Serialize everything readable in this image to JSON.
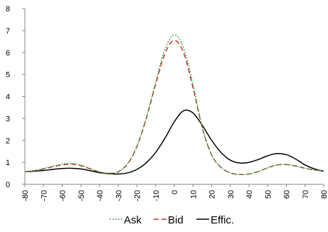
{
  "chart_data": {
    "type": "line",
    "title": "",
    "xlabel": "",
    "ylabel": "",
    "xlim": [
      -80,
      80
    ],
    "ylim": [
      0,
      8
    ],
    "x_ticks": [
      -80,
      -70,
      -60,
      -50,
      -40,
      -30,
      -20,
      -10,
      0,
      10,
      20,
      30,
      40,
      50,
      60,
      70,
      80
    ],
    "x_tick_labels": [
      "-80",
      "-70",
      "-60",
      "-50",
      "-40",
      "-30",
      "-20",
      "-10",
      "0",
      "10",
      "20",
      "30",
      "40",
      "50",
      "60",
      "70",
      "80"
    ],
    "y_ticks": [
      0,
      1,
      2,
      3,
      4,
      5,
      6,
      7,
      8
    ],
    "y_tick_labels": [
      "0",
      "1",
      "2",
      "3",
      "4",
      "5",
      "6",
      "7",
      "8"
    ],
    "grid": false,
    "legend_position": "bottom",
    "x": [
      -80,
      -75,
      -70,
      -65,
      -60,
      -55,
      -50,
      -45,
      -40,
      -35,
      -30,
      -25,
      -20,
      -15,
      -10,
      -5,
      0,
      5,
      10,
      15,
      20,
      25,
      30,
      35,
      40,
      45,
      50,
      55,
      60,
      65,
      70,
      75,
      80
    ],
    "series": [
      {
        "name": "Ask",
        "color": "#1a9e3a",
        "dash": "dotted",
        "values": [
          0.57,
          0.62,
          0.72,
          0.83,
          0.92,
          0.95,
          0.87,
          0.72,
          0.57,
          0.5,
          0.58,
          0.95,
          1.75,
          3.05,
          4.65,
          6.15,
          6.8,
          6.2,
          4.55,
          2.6,
          1.35,
          0.78,
          0.52,
          0.45,
          0.47,
          0.58,
          0.75,
          0.88,
          0.9,
          0.83,
          0.73,
          0.65,
          0.62
        ]
      },
      {
        "name": "Bid",
        "color": "#c0392b",
        "dash": "dashed",
        "values": [
          0.57,
          0.62,
          0.7,
          0.8,
          0.88,
          0.92,
          0.85,
          0.7,
          0.56,
          0.5,
          0.57,
          0.93,
          1.72,
          3.0,
          4.55,
          5.95,
          6.55,
          5.98,
          4.4,
          2.55,
          1.33,
          0.77,
          0.52,
          0.45,
          0.47,
          0.58,
          0.75,
          0.88,
          0.9,
          0.83,
          0.73,
          0.65,
          0.62
        ]
      },
      {
        "name": "Effic.",
        "color": "#000000",
        "dash": "solid",
        "values": [
          0.57,
          0.6,
          0.63,
          0.68,
          0.72,
          0.73,
          0.7,
          0.62,
          0.53,
          0.48,
          0.47,
          0.52,
          0.68,
          0.98,
          1.45,
          2.1,
          2.85,
          3.35,
          3.25,
          2.68,
          2.0,
          1.45,
          1.1,
          0.97,
          1.0,
          1.13,
          1.3,
          1.4,
          1.35,
          1.15,
          0.88,
          0.7,
          0.6
        ]
      }
    ]
  }
}
